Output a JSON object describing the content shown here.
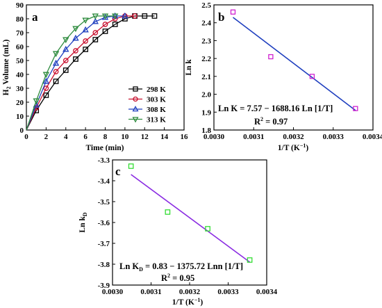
{
  "chart_data": [
    {
      "type": "line",
      "panel_label": "a",
      "xlabel": "Time (min)",
      "ylabel": "H2 Volume (mL)",
      "xlim": [
        0,
        16
      ],
      "ylim": [
        0,
        90
      ],
      "xticks": [
        "0",
        "2",
        "4",
        "6",
        "8",
        "10",
        "12",
        "14",
        "16"
      ],
      "yticks": [
        "0",
        "10",
        "20",
        "30",
        "40",
        "50",
        "60",
        "70",
        "80",
        "90"
      ],
      "legend_position": "lower-right",
      "series": [
        {
          "name": "298 K",
          "color": "#000000",
          "marker": "square",
          "x": [
            0,
            1,
            2,
            3,
            4,
            5,
            6,
            7,
            8,
            9,
            10,
            11,
            12,
            13
          ],
          "y": [
            0,
            14,
            25,
            35,
            43,
            51,
            58,
            65,
            71,
            76,
            80,
            82,
            82,
            82
          ]
        },
        {
          "name": "303 K",
          "color": "#c8102e",
          "marker": "circle",
          "x": [
            0,
            1,
            2,
            3,
            4,
            5,
            6,
            7,
            8,
            9,
            10,
            11
          ],
          "y": [
            0,
            16,
            30,
            42,
            50,
            57,
            64,
            70,
            76,
            80,
            82,
            82
          ]
        },
        {
          "name": "308 K",
          "color": "#1f3fbf",
          "marker": "triangle-up",
          "x": [
            0,
            1,
            2,
            3,
            4,
            5,
            6,
            7,
            8,
            9,
            10
          ],
          "y": [
            0,
            18,
            35,
            48,
            58,
            66,
            72,
            78,
            81,
            82,
            82
          ]
        },
        {
          "name": "313 K",
          "color": "#2e8b3e",
          "marker": "triangle-down",
          "x": [
            0,
            1,
            2,
            3,
            4,
            5,
            6,
            7,
            8,
            9
          ],
          "y": [
            0,
            21,
            40,
            55,
            65,
            73,
            79,
            82,
            82,
            82
          ]
        }
      ]
    },
    {
      "type": "scatter",
      "panel_label": "b",
      "xlabel": "1/T (K⁻¹)",
      "ylabel": "Ln k",
      "xlim": [
        0.003,
        0.0034
      ],
      "ylim": [
        1.8,
        2.5
      ],
      "xticks": [
        "0.0030",
        "0.0031",
        "0.0032",
        "0.0033",
        "0.0034"
      ],
      "yticks": [
        "1.8",
        "1.9",
        "2.0",
        "2.1",
        "2.2",
        "2.3",
        "2.4",
        "2.5"
      ],
      "points": {
        "color": "#d020d0",
        "marker": "square",
        "x": [
          0.003048,
          0.003143,
          0.003247,
          0.003356
        ],
        "y": [
          2.46,
          2.21,
          2.1,
          1.92
        ]
      },
      "fit": {
        "color": "#1f3fbf",
        "x": [
          0.003048,
          0.003356
        ],
        "y": [
          2.43,
          1.91
        ]
      },
      "equation": "Ln K = 7.57 − 1688.16 Ln [1/T]",
      "r2": "R² = 0.97"
    },
    {
      "type": "scatter",
      "panel_label": "c",
      "xlabel": "1/T (K⁻¹)",
      "ylabel": "Ln kD",
      "xlim": [
        0.003,
        0.0034
      ],
      "ylim": [
        -3.9,
        -3.3
      ],
      "xticks": [
        "0.0030",
        "0.0031",
        "0.0032",
        "0.0033",
        "0.0034"
      ],
      "yticks": [
        "-3.3",
        "-3.4",
        "-3.5",
        "-3.6",
        "-3.7",
        "-3.8",
        "-3.9"
      ],
      "points": {
        "color": "#33dd33",
        "marker": "square",
        "x": [
          0.003048,
          0.003143,
          0.003247,
          0.003356
        ],
        "y": [
          -3.33,
          -3.55,
          -3.63,
          -3.78
        ]
      },
      "fit": {
        "color": "#8a2be2",
        "x": [
          0.003048,
          0.003356
        ],
        "y": [
          -3.37,
          -3.79
        ]
      },
      "equation": "Ln KD = 0.83 − 1375.72 Lnn [1/T]",
      "r2": "R² = 0.95"
    }
  ]
}
